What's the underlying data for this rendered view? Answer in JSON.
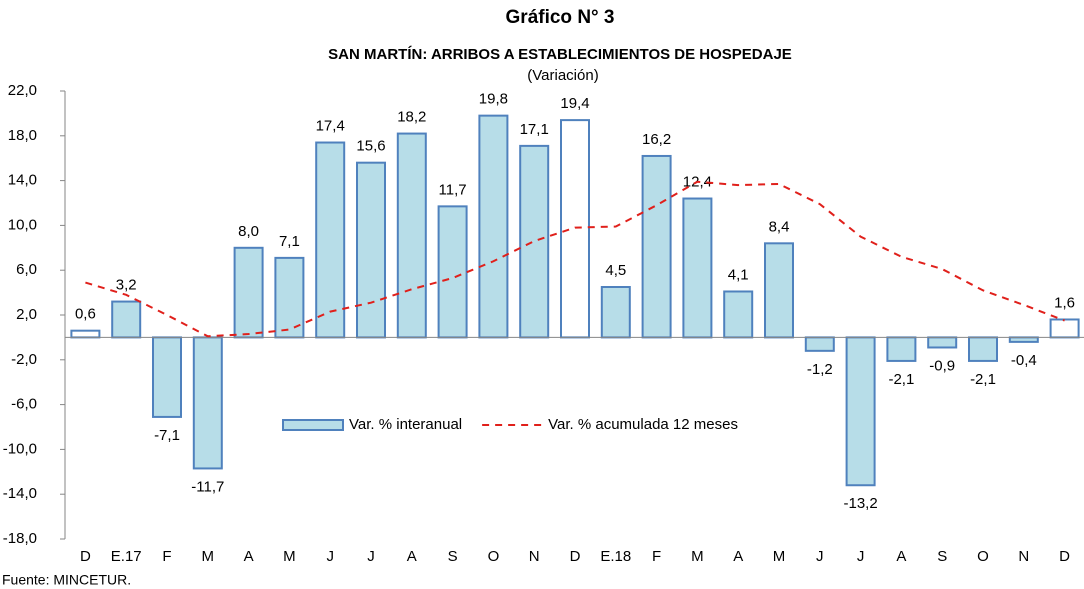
{
  "chart_data": {
    "type": "bar",
    "title": "Gráfico N° 3",
    "subtitle": "SAN MARTÍN: ARRIBOS A ESTABLECIMIENTOS DE HOSPEDAJE",
    "annotation": "(Variación)",
    "source": "Fuente: MINCETUR.",
    "categories": [
      "D",
      "E.17",
      "F",
      "M",
      "A",
      "M",
      "J",
      "J",
      "A",
      "S",
      "O",
      "N",
      "D",
      "E.18",
      "F",
      "M",
      "A",
      "M",
      "J",
      "J",
      "A",
      "S",
      "O",
      "N",
      "D"
    ],
    "series": [
      {
        "name": "Var. % interanual",
        "type": "bar",
        "stroke": "#4f81bd",
        "colors": [
          "#ffffff",
          "#b7dde8",
          "#b7dde8",
          "#b7dde8",
          "#b7dde8",
          "#b7dde8",
          "#b7dde8",
          "#b7dde8",
          "#b7dde8",
          "#b7dde8",
          "#b7dde8",
          "#b7dde8",
          "#ffffff",
          "#b7dde8",
          "#b7dde8",
          "#b7dde8",
          "#b7dde8",
          "#b7dde8",
          "#b7dde8",
          "#b7dde8",
          "#b7dde8",
          "#b7dde8",
          "#b7dde8",
          "#b7dde8",
          "#ffffff"
        ],
        "values": [
          0.6,
          3.2,
          -7.1,
          -11.7,
          8.0,
          7.1,
          17.4,
          15.6,
          18.2,
          11.7,
          19.8,
          17.1,
          19.4,
          4.5,
          16.2,
          12.4,
          4.1,
          8.4,
          -1.2,
          -13.2,
          -2.1,
          -0.9,
          -2.1,
          -0.4,
          1.6
        ],
        "value_labels": [
          "0,6",
          "3,2",
          "-7,1",
          "-11,7",
          "8,0",
          "7,1",
          "17,4",
          "15,6",
          "18,2",
          "11,7",
          "19,8",
          "17,1",
          "19,4",
          "4,5",
          "16,2",
          "12,4",
          "4,1",
          "8,4",
          "-1,2",
          "-13,2",
          "-2,1",
          "-0,9",
          "-2,1",
          "-0,4",
          "1,6"
        ]
      },
      {
        "name": "Var. % acumulada 12 meses",
        "type": "line",
        "color": "#e0201b",
        "dashed": true,
        "values": [
          4.9,
          3.8,
          2.0,
          0.1,
          0.3,
          0.7,
          2.3,
          3.1,
          4.3,
          5.3,
          6.8,
          8.6,
          9.8,
          9.9,
          11.8,
          13.9,
          13.6,
          13.7,
          11.9,
          9.0,
          7.2,
          6.1,
          4.2,
          2.9,
          1.5
        ]
      }
    ],
    "ylim": [
      -18,
      22
    ],
    "yticks": [
      {
        "value": -18,
        "label": "-18,0"
      },
      {
        "value": -14,
        "label": "-14,0"
      },
      {
        "value": -10,
        "label": "-10,0"
      },
      {
        "value": -6,
        "label": "-6,0"
      },
      {
        "value": -2,
        "label": "-2,0"
      },
      {
        "value": 2,
        "label": "2,0"
      },
      {
        "value": 6,
        "label": "6,0"
      },
      {
        "value": 10,
        "label": "10,0"
      },
      {
        "value": 14,
        "label": "14,0"
      },
      {
        "value": 18,
        "label": "18,0"
      },
      {
        "value": 22,
        "label": "22,0"
      }
    ],
    "legend": "center"
  }
}
